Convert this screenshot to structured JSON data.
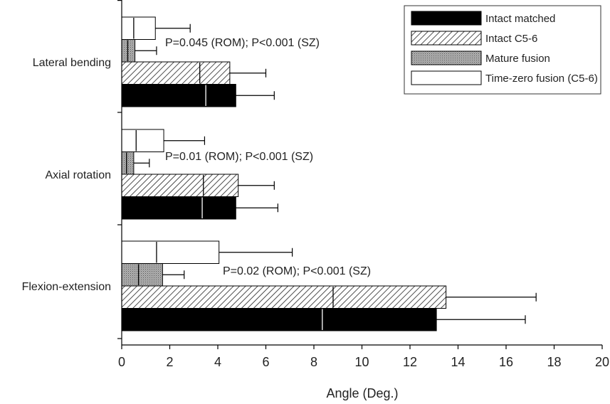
{
  "chart_data": {
    "type": "bar",
    "orientation": "horizontal",
    "xlabel": "Angle (Deg.)",
    "ylabel": "",
    "xlim": [
      0,
      20
    ],
    "xticks": [
      0,
      2,
      4,
      6,
      8,
      10,
      12,
      14,
      16,
      18,
      20
    ],
    "grid": false,
    "legend_position": "top-right",
    "categories": [
      "Lateral bending",
      "Axial rotation",
      "Flexion-extension"
    ],
    "series": [
      {
        "name": "Time-zero fusion (C5-6)",
        "fill": "white",
        "values": [
          1.4,
          1.75,
          4.05
        ],
        "error": [
          1.45,
          1.7,
          3.05
        ],
        "median": [
          0.5,
          0.6,
          1.45
        ]
      },
      {
        "name": "Mature fusion",
        "fill": "stipple",
        "values": [
          0.55,
          0.5,
          1.7
        ],
        "error": [
          0.9,
          0.65,
          0.9
        ],
        "median": [
          0.25,
          0.2,
          0.7
        ]
      },
      {
        "name": "Intact C5-6",
        "fill": "hatch",
        "values": [
          4.5,
          4.85,
          13.5
        ],
        "error": [
          1.5,
          1.5,
          3.75
        ],
        "median": [
          3.25,
          3.4,
          8.8
        ]
      },
      {
        "name": "Intact matched",
        "fill": "black",
        "values": [
          4.75,
          4.75,
          13.1
        ],
        "error": [
          1.6,
          1.75,
          3.7
        ],
        "median": [
          3.5,
          3.35,
          8.35
        ]
      }
    ],
    "legend_order": [
      "Intact matched",
      "Intact C5-6",
      "Mature fusion",
      "Time-zero fusion (C5-6)"
    ],
    "annotations": [
      {
        "category": "Lateral bending",
        "text": "P=0.045 (ROM); P<0.001 (SZ)"
      },
      {
        "category": "Axial rotation",
        "text": "P=0.01 (ROM); P<0.001 (SZ)"
      },
      {
        "category": "Flexion-extension",
        "text": "P=0.02 (ROM); P<0.001 (SZ)"
      }
    ]
  }
}
